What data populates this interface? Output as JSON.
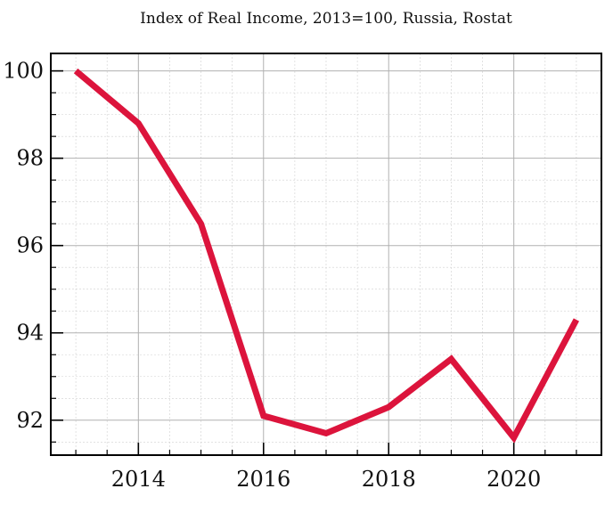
{
  "chart_data": {
    "type": "line",
    "title": "Index of Real Income, 2013=100, Russia, Rostat",
    "xlabel": "",
    "ylabel": "",
    "x": [
      2013,
      2014,
      2015,
      2016,
      2017,
      2018,
      2019,
      2020,
      2021
    ],
    "series": [
      {
        "values": [
          100.0,
          98.8,
          96.5,
          92.1,
          91.7,
          92.3,
          93.4,
          91.6,
          94.3
        ]
      }
    ],
    "xlim": [
      2012.6,
      2021.4
    ],
    "ylim": [
      91.2,
      100.4
    ],
    "x_ticks": [
      2014,
      2016,
      2018,
      2020
    ],
    "x_tick_labels": [
      "2014",
      "2016",
      "2018",
      "2020"
    ],
    "y_ticks": [
      92,
      94,
      96,
      98,
      100
    ],
    "y_tick_labels": [
      "92",
      "94",
      "96",
      "98",
      "100"
    ],
    "grid": true,
    "minor_grid": true,
    "legend": "none",
    "colors": {
      "line": "#dc143c",
      "major_grid": "#b0b0b0",
      "minor_grid": "#d0d0d0",
      "axes": "#000000"
    }
  }
}
